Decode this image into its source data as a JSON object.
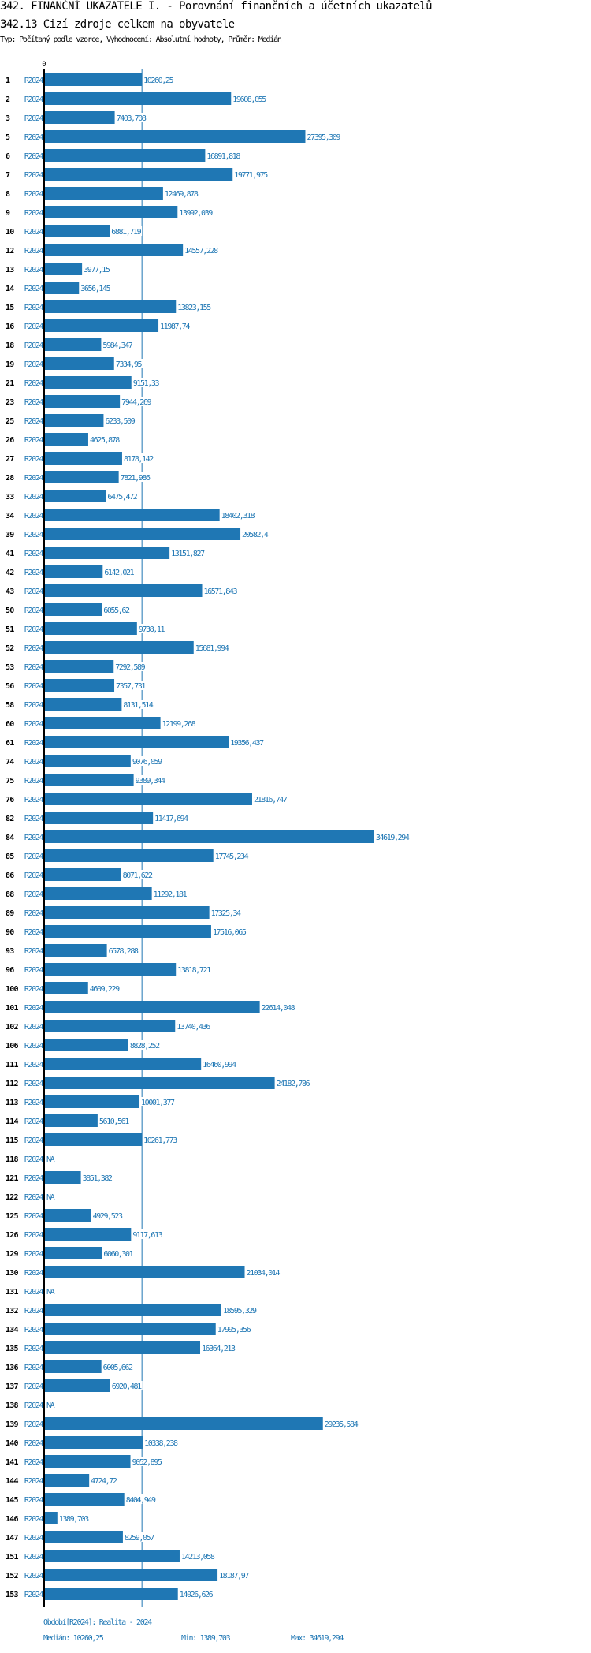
{
  "header": {
    "title": "342. FINANČNÍ UKAZATELE I. - Porovnání finančních a účetních ukazatelů",
    "subtitle": "342.13 Cizí zdroje celkem na obyvatele",
    "meta": "Typ: Počítaný podle vzorce, Vyhodnocení: Absolutní hodnoty, Průměr: Medián"
  },
  "colors": {
    "bar": "#1f77b4",
    "text_blue": "#1f77b4",
    "axis": "#000000"
  },
  "chart_data": {
    "type": "bar",
    "orientation": "horizontal",
    "title": "342.13 Cizí zdroje celkem na obyvatele",
    "x_tick_labels": [
      "0"
    ],
    "xlim": [
      0,
      34619.294
    ],
    "series_label": "R2024",
    "reference_line": {
      "label": "Medián",
      "value": 10260.25
    },
    "rows": [
      {
        "id": "1",
        "value": 10260.25,
        "label": "10260,25"
      },
      {
        "id": "2",
        "value": 19608.055,
        "label": "19608,055"
      },
      {
        "id": "3",
        "value": 7403.708,
        "label": "7403,708"
      },
      {
        "id": "5",
        "value": 27395.309,
        "label": "27395,309"
      },
      {
        "id": "6",
        "value": 16891.818,
        "label": "16891,818"
      },
      {
        "id": "7",
        "value": 19771.975,
        "label": "19771,975"
      },
      {
        "id": "8",
        "value": 12469.878,
        "label": "12469,878"
      },
      {
        "id": "9",
        "value": 13992.039,
        "label": "13992,039"
      },
      {
        "id": "10",
        "value": 6881.719,
        "label": "6881,719"
      },
      {
        "id": "12",
        "value": 14557.228,
        "label": "14557,228"
      },
      {
        "id": "13",
        "value": 3977.15,
        "label": "3977,15"
      },
      {
        "id": "14",
        "value": 3656.145,
        "label": "3656,145"
      },
      {
        "id": "15",
        "value": 13823.155,
        "label": "13823,155"
      },
      {
        "id": "16",
        "value": 11987.74,
        "label": "11987,74"
      },
      {
        "id": "18",
        "value": 5984.347,
        "label": "5984,347"
      },
      {
        "id": "19",
        "value": 7334.95,
        "label": "7334,95"
      },
      {
        "id": "21",
        "value": 9151.33,
        "label": "9151,33"
      },
      {
        "id": "23",
        "value": 7944.269,
        "label": "7944,269"
      },
      {
        "id": "25",
        "value": 6233.509,
        "label": "6233,509"
      },
      {
        "id": "26",
        "value": 4625.878,
        "label": "4625,878"
      },
      {
        "id": "27",
        "value": 8178.142,
        "label": "8178,142"
      },
      {
        "id": "28",
        "value": 7821.986,
        "label": "7821,986"
      },
      {
        "id": "33",
        "value": 6475.472,
        "label": "6475,472"
      },
      {
        "id": "34",
        "value": 18402.318,
        "label": "18402,318"
      },
      {
        "id": "39",
        "value": 20582.4,
        "label": "20582,4"
      },
      {
        "id": "41",
        "value": 13151.827,
        "label": "13151,827"
      },
      {
        "id": "42",
        "value": 6142.021,
        "label": "6142,021"
      },
      {
        "id": "43",
        "value": 16571.843,
        "label": "16571,843"
      },
      {
        "id": "50",
        "value": 6055.62,
        "label": "6055,62"
      },
      {
        "id": "51",
        "value": 9738.11,
        "label": "9738,11"
      },
      {
        "id": "52",
        "value": 15681.994,
        "label": "15681,994"
      },
      {
        "id": "53",
        "value": 7292.589,
        "label": "7292,589"
      },
      {
        "id": "56",
        "value": 7357.731,
        "label": "7357,731"
      },
      {
        "id": "58",
        "value": 8131.514,
        "label": "8131,514"
      },
      {
        "id": "60",
        "value": 12199.268,
        "label": "12199,268"
      },
      {
        "id": "61",
        "value": 19356.437,
        "label": "19356,437"
      },
      {
        "id": "74",
        "value": 9076.059,
        "label": "9076,059"
      },
      {
        "id": "75",
        "value": 9389.344,
        "label": "9389,344"
      },
      {
        "id": "76",
        "value": 21816.747,
        "label": "21816,747"
      },
      {
        "id": "82",
        "value": 11417.694,
        "label": "11417,694"
      },
      {
        "id": "84",
        "value": 34619.294,
        "label": "34619,294"
      },
      {
        "id": "85",
        "value": 17745.234,
        "label": "17745,234"
      },
      {
        "id": "86",
        "value": 8071.622,
        "label": "8071,622"
      },
      {
        "id": "88",
        "value": 11292.181,
        "label": "11292,181"
      },
      {
        "id": "89",
        "value": 17325.34,
        "label": "17325,34"
      },
      {
        "id": "90",
        "value": 17516.065,
        "label": "17516,065"
      },
      {
        "id": "93",
        "value": 6578.288,
        "label": "6578,288"
      },
      {
        "id": "96",
        "value": 13818.721,
        "label": "13818,721"
      },
      {
        "id": "100",
        "value": 4609.229,
        "label": "4609,229"
      },
      {
        "id": "101",
        "value": 22614.048,
        "label": "22614,048"
      },
      {
        "id": "102",
        "value": 13740.436,
        "label": "13740,436"
      },
      {
        "id": "106",
        "value": 8828.252,
        "label": "8828,252"
      },
      {
        "id": "111",
        "value": 16460.994,
        "label": "16460,994"
      },
      {
        "id": "112",
        "value": 24182.786,
        "label": "24182,786"
      },
      {
        "id": "113",
        "value": 10001.377,
        "label": "10001,377"
      },
      {
        "id": "114",
        "value": 5610.561,
        "label": "5610,561"
      },
      {
        "id": "115",
        "value": 10261.773,
        "label": "10261,773"
      },
      {
        "id": "118",
        "value": null,
        "label": "NA"
      },
      {
        "id": "121",
        "value": 3851.382,
        "label": "3851,382"
      },
      {
        "id": "122",
        "value": null,
        "label": "NA"
      },
      {
        "id": "125",
        "value": 4929.523,
        "label": "4929,523"
      },
      {
        "id": "126",
        "value": 9117.613,
        "label": "9117,613"
      },
      {
        "id": "129",
        "value": 6060.301,
        "label": "6060,301"
      },
      {
        "id": "130",
        "value": 21034.014,
        "label": "21034,014"
      },
      {
        "id": "131",
        "value": null,
        "label": "NA"
      },
      {
        "id": "132",
        "value": 18595.329,
        "label": "18595,329"
      },
      {
        "id": "134",
        "value": 17995.356,
        "label": "17995,356"
      },
      {
        "id": "135",
        "value": 16364.213,
        "label": "16364,213"
      },
      {
        "id": "136",
        "value": 6005.662,
        "label": "6005,662"
      },
      {
        "id": "137",
        "value": 6920.481,
        "label": "6920,481"
      },
      {
        "id": "138",
        "value": null,
        "label": "NA"
      },
      {
        "id": "139",
        "value": 29235.584,
        "label": "29235,584"
      },
      {
        "id": "140",
        "value": 10338.238,
        "label": "10338,238"
      },
      {
        "id": "141",
        "value": 9052.895,
        "label": "9052,895"
      },
      {
        "id": "144",
        "value": 4724.72,
        "label": "4724,72"
      },
      {
        "id": "145",
        "value": 8404.949,
        "label": "8404,949"
      },
      {
        "id": "146",
        "value": 1389.703,
        "label": "1389,703"
      },
      {
        "id": "147",
        "value": 8259.057,
        "label": "8259,057"
      },
      {
        "id": "151",
        "value": 14213.058,
        "label": "14213,058"
      },
      {
        "id": "152",
        "value": 18187.97,
        "label": "18187,97"
      },
      {
        "id": "153",
        "value": 14026.626,
        "label": "14026,626"
      }
    ]
  },
  "footer": {
    "period": "Období[R2024]: Realita - 2024",
    "median": "Medián: 10260,25",
    "min": "Min: 1389,703",
    "max": "Max: 34619,294"
  }
}
